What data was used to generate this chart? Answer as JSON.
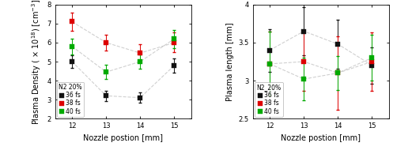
{
  "x": [
    12,
    13,
    14,
    15
  ],
  "left_plot": {
    "ylabel_line1": "Plasma Density ( × 10",
    "ylabel_exp": "18",
    "ylabel_line2": ") [cm",
    "ylabel_exp2": "-3",
    "ylabel_line3": "]",
    "xlabel": "Nozzle postion [mm]",
    "ylim": [
      2,
      8
    ],
    "yticks": [
      2,
      3,
      4,
      5,
      6,
      7,
      8
    ],
    "series": [
      {
        "label": "36 fs",
        "color": "#111111",
        "marker": "s",
        "y": [
          5.0,
          3.2,
          3.1,
          4.8
        ],
        "yerr": [
          0.35,
          0.28,
          0.28,
          0.38
        ]
      },
      {
        "label": "38 fs",
        "color": "#dd0000",
        "marker": "s",
        "y": [
          7.1,
          6.0,
          5.45,
          6.0
        ],
        "yerr": [
          0.48,
          0.42,
          0.48,
          0.52
        ]
      },
      {
        "label": "40 fs",
        "color": "#00aa00",
        "marker": "s",
        "y": [
          5.8,
          4.45,
          5.0,
          6.2
        ],
        "yerr": [
          0.42,
          0.38,
          0.38,
          0.48
        ]
      }
    ],
    "legend_title": "N2 20%"
  },
  "right_plot": {
    "ylabel": "Plasma length [mm]",
    "xlabel": "Nozzle postion [mm]",
    "ylim": [
      2.5,
      4.0
    ],
    "yticks": [
      2.5,
      3.0,
      3.5,
      4.0
    ],
    "series": [
      {
        "label": "36 fs",
        "color": "#111111",
        "marker": "s",
        "y": [
          3.4,
          3.65,
          3.48,
          3.2
        ],
        "yerr": [
          0.28,
          0.32,
          0.32,
          0.24
        ]
      },
      {
        "label": "38 fs",
        "color": "#dd0000",
        "marker": "s",
        "y": [
          3.22,
          3.25,
          3.1,
          3.25
        ],
        "yerr": [
          0.42,
          0.38,
          0.48,
          0.38
        ]
      },
      {
        "label": "40 fs",
        "color": "#00aa00",
        "marker": "s",
        "y": [
          3.22,
          3.02,
          3.1,
          3.3
        ],
        "yerr": [
          0.42,
          0.28,
          0.22,
          0.3
        ]
      }
    ],
    "legend_title": "N2_20%"
  },
  "line_color": "#c0c0c0",
  "line_style": "--",
  "line_alpha": 0.75,
  "marker_size": 4,
  "errorbar_capsize": 1.5,
  "errorbar_linewidth": 0.7,
  "tick_fontsize": 6,
  "label_fontsize": 7,
  "legend_fontsize": 5.5
}
